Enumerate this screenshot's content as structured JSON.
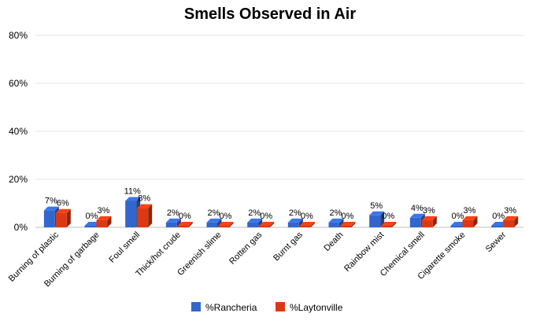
{
  "chart_data": {
    "type": "bar",
    "title": "Smells Observed in Air",
    "categories": [
      "Burning of plastic",
      "Burning of garbage",
      "Foul smell",
      "Thick/hot crude",
      "Greenish slime",
      "Rotten gas",
      "Burnt gas",
      "Death",
      "Rainbow mist",
      "Chemical smell",
      "Cigarette smoke",
      "Sewer"
    ],
    "series": [
      {
        "name": "%Rancheria",
        "color": "#3366cc",
        "values": [
          7,
          0,
          11,
          2,
          2,
          2,
          2,
          2,
          5,
          4,
          0,
          0
        ],
        "labels": [
          "7%",
          "0%",
          "11%",
          "2%",
          "2%",
          "2%",
          "2%",
          "2%",
          "5%",
          "4%",
          "0%",
          "0%"
        ]
      },
      {
        "name": "%Laytonville",
        "color": "#dc3912",
        "values": [
          6,
          3,
          8,
          0,
          0,
          0,
          0,
          0,
          0,
          3,
          3,
          3
        ],
        "labels": [
          "6%",
          "3%",
          "8%",
          "0%",
          "0%",
          "0%",
          "0%",
          "0%",
          "0%",
          "3%",
          "3%",
          "3%"
        ]
      }
    ],
    "ylim": [
      0,
      80
    ],
    "yticks": [
      "0%",
      "20%",
      "40%",
      "60%",
      "80%"
    ],
    "ytick_values": [
      0,
      20,
      40,
      60,
      80
    ],
    "xlabel": "",
    "ylabel": "",
    "grid": true,
    "legend_position": "bottom",
    "style": "3d-bar"
  }
}
